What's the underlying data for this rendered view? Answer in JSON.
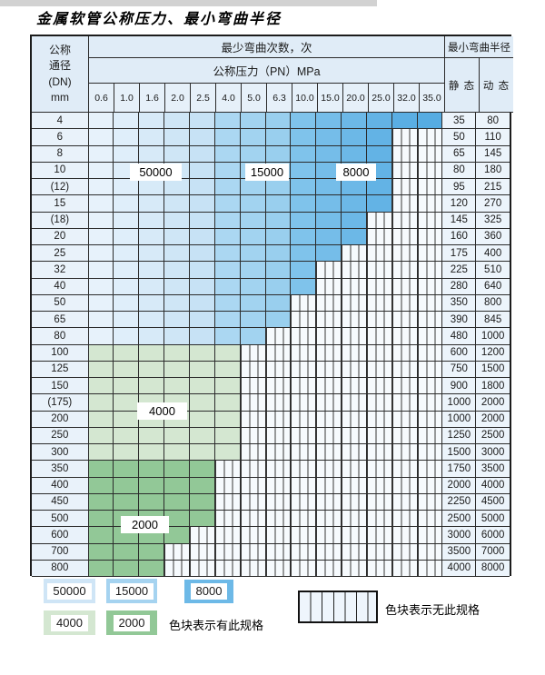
{
  "title": "金属软管公称压力、最小弯曲半径",
  "table": {
    "dn_header_lines": [
      "公称",
      "通径",
      "(DN)",
      "mm"
    ],
    "bend_cycles_header": "最少弯曲次数，次",
    "pressure_header": "公称压力（PN）MPa",
    "pressures": [
      "0.6",
      "1.0",
      "1.6",
      "2.0",
      "2.5",
      "4.0",
      "5.0",
      "6.3",
      "10.0",
      "15.0",
      "20.0",
      "25.0",
      "32.0",
      "35.0"
    ],
    "radius_header": "最小弯曲半径",
    "static_header": "静 态",
    "dynamic_header": "动 态",
    "rows": [
      {
        "dn": "4",
        "cols": 14,
        "band": "blue",
        "static": "35",
        "dynamic": "80"
      },
      {
        "dn": "6",
        "cols": 12,
        "band": "blue",
        "static": "50",
        "dynamic": "110"
      },
      {
        "dn": "8",
        "cols": 12,
        "band": "blue",
        "static": "65",
        "dynamic": "145"
      },
      {
        "dn": "10",
        "cols": 12,
        "band": "blue",
        "static": "80",
        "dynamic": "180"
      },
      {
        "dn": "(12)",
        "cols": 12,
        "band": "blue",
        "static": "95",
        "dynamic": "215"
      },
      {
        "dn": "15",
        "cols": 12,
        "band": "blue",
        "static": "120",
        "dynamic": "270"
      },
      {
        "dn": "(18)",
        "cols": 11,
        "band": "blue",
        "static": "145",
        "dynamic": "325"
      },
      {
        "dn": "20",
        "cols": 11,
        "band": "blue",
        "static": "160",
        "dynamic": "360"
      },
      {
        "dn": "25",
        "cols": 10,
        "band": "blue",
        "static": "175",
        "dynamic": "400"
      },
      {
        "dn": "32",
        "cols": 9,
        "band": "blue",
        "static": "225",
        "dynamic": "510"
      },
      {
        "dn": "40",
        "cols": 9,
        "band": "blue",
        "static": "280",
        "dynamic": "640"
      },
      {
        "dn": "50",
        "cols": 8,
        "band": "blue",
        "static": "350",
        "dynamic": "800"
      },
      {
        "dn": "65",
        "cols": 8,
        "band": "blue",
        "static": "390",
        "dynamic": "845"
      },
      {
        "dn": "80",
        "cols": 7,
        "band": "blue",
        "static": "480",
        "dynamic": "1000"
      },
      {
        "dn": "100",
        "cols": 6,
        "band": "green_light",
        "static": "600",
        "dynamic": "1200"
      },
      {
        "dn": "125",
        "cols": 6,
        "band": "green_light",
        "static": "750",
        "dynamic": "1500"
      },
      {
        "dn": "150",
        "cols": 6,
        "band": "green_light",
        "static": "900",
        "dynamic": "1800"
      },
      {
        "dn": "(175)",
        "cols": 6,
        "band": "green_light",
        "static": "1000",
        "dynamic": "2000"
      },
      {
        "dn": "200",
        "cols": 6,
        "band": "green_light",
        "static": "1000",
        "dynamic": "2000"
      },
      {
        "dn": "250",
        "cols": 6,
        "band": "green_light",
        "static": "1250",
        "dynamic": "2500"
      },
      {
        "dn": "300",
        "cols": 6,
        "band": "green_light",
        "static": "1500",
        "dynamic": "3000"
      },
      {
        "dn": "350",
        "cols": 5,
        "band": "green_dark",
        "static": "1750",
        "dynamic": "3500"
      },
      {
        "dn": "400",
        "cols": 5,
        "band": "green_dark",
        "static": "2000",
        "dynamic": "4000"
      },
      {
        "dn": "450",
        "cols": 5,
        "band": "green_dark",
        "static": "2250",
        "dynamic": "4500"
      },
      {
        "dn": "500",
        "cols": 5,
        "band": "green_dark",
        "static": "2500",
        "dynamic": "5000"
      },
      {
        "dn": "600",
        "cols": 4,
        "band": "green_dark",
        "static": "3000",
        "dynamic": "6000"
      },
      {
        "dn": "700",
        "cols": 3,
        "band": "green_dark",
        "static": "3500",
        "dynamic": "7000"
      },
      {
        "dn": "800",
        "cols": 3,
        "band": "green_dark",
        "static": "4000",
        "dynamic": "8000"
      }
    ]
  },
  "zone_labels": {
    "b50000": "50000",
    "b15000": "15000",
    "b8000": "8000",
    "g4000": "4000",
    "g2000": "2000"
  },
  "colors": {
    "blue_cols": [
      "#e7f2fb",
      "#dfeefa",
      "#d7eaf8",
      "#cfe6f6",
      "#c7e2f5",
      "#abd7f2",
      "#a2d3f0",
      "#99cfee",
      "#7fc3eb",
      "#75bde9",
      "#6cb8e7",
      "#63b3e5",
      "#5aaee3",
      "#56ace2"
    ],
    "green_light": "#d4e7d1",
    "green_dark": "#92c897",
    "legend_blue_light": "#cfe5f6",
    "legend_blue_mid": "#a5d3f0",
    "legend_blue_dark": "#6db9e7"
  },
  "legend": {
    "swatches": [
      {
        "label": "50000",
        "color": "#cfe5f6"
      },
      {
        "label": "15000",
        "color": "#a5d3f0"
      },
      {
        "label": "8000",
        "color": "#6db9e7"
      },
      {
        "label": "4000",
        "color": "#d4e7d1"
      },
      {
        "label": "2000",
        "color": "#92c897"
      }
    ],
    "has_spec_text": "色块表示有此规格",
    "no_spec_text": "色块表示无此规格"
  }
}
